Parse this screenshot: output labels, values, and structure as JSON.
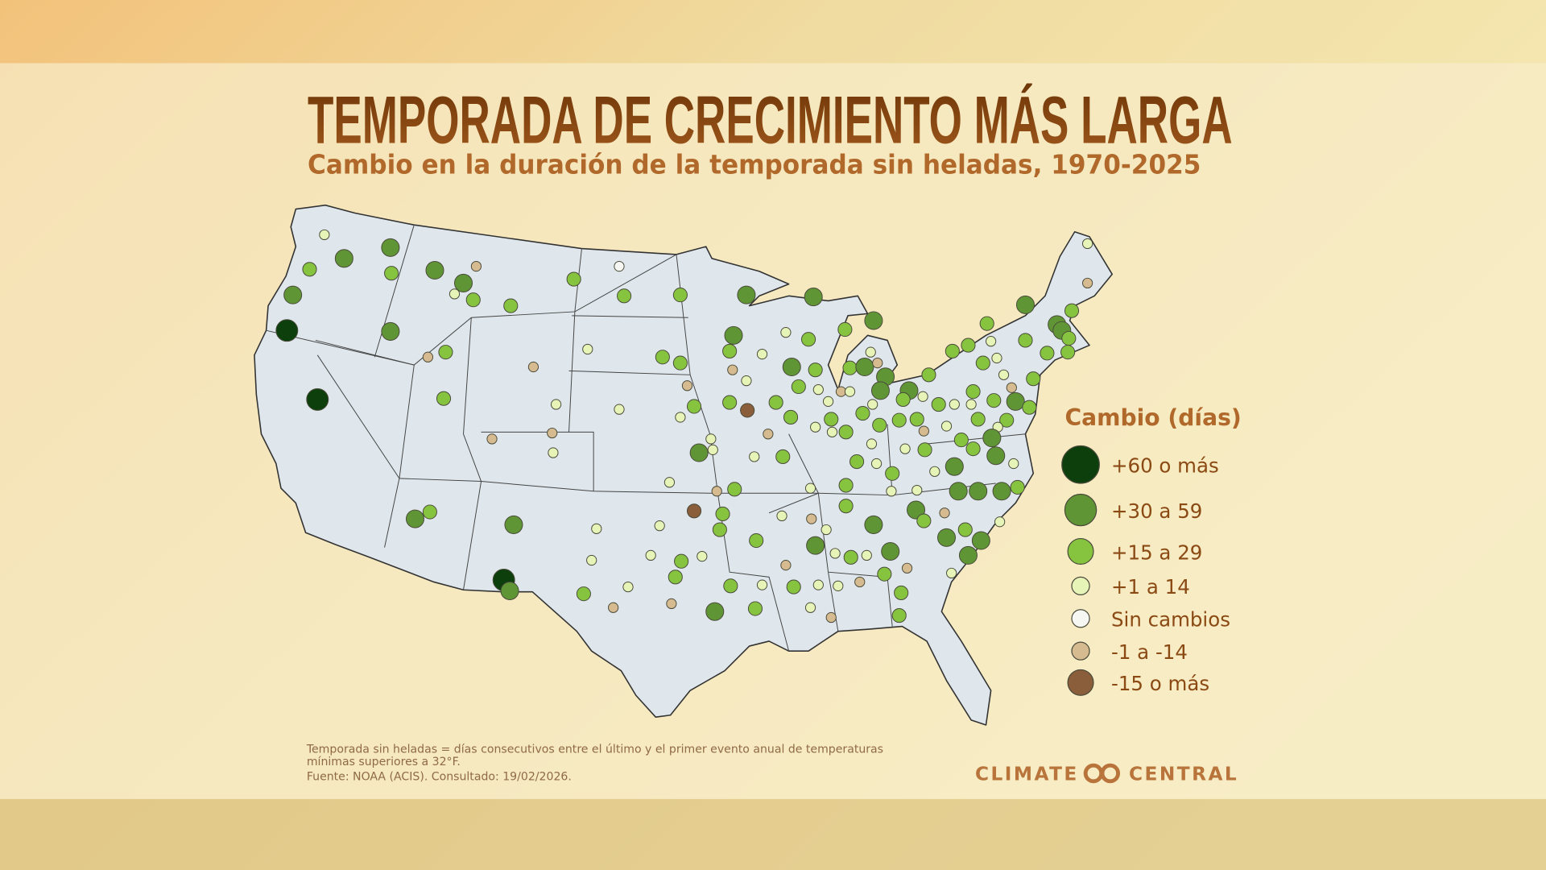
{
  "header": {
    "title": "TEMPORADA DE CRECIMIENTO MÁS LARGA",
    "subtitle": "Cambio en la duración de la temporada sin heladas, 1970-2025"
  },
  "legend": {
    "title": "Cambio (días)",
    "items": [
      {
        "label": "+60 o más",
        "color": "#0d3f0d"
      },
      {
        "label": "+30 a 59",
        "color": "#5f9535"
      },
      {
        "label": "+15 a 29",
        "color": "#86c440"
      },
      {
        "label": "+1 a 14",
        "color": "#e6f4b8"
      },
      {
        "label": "Sin cambios",
        "color": "#f6f6f2"
      },
      {
        "label": "-1 a -14",
        "color": "#d6bb90"
      },
      {
        "label": "-15 o más",
        "color": "#8a5d3b"
      }
    ]
  },
  "footer": {
    "notes": [
      "Temporada sin heladas = días consecutivos entre el último y el primer evento anual de temperaturas",
      "mínimas superiores a 32°F.",
      "Fuente: NOAA (ACIS). Consultado: 19/02/2026."
    ],
    "logo": [
      "CLIMATE",
      "CENTRAL"
    ]
  }
}
